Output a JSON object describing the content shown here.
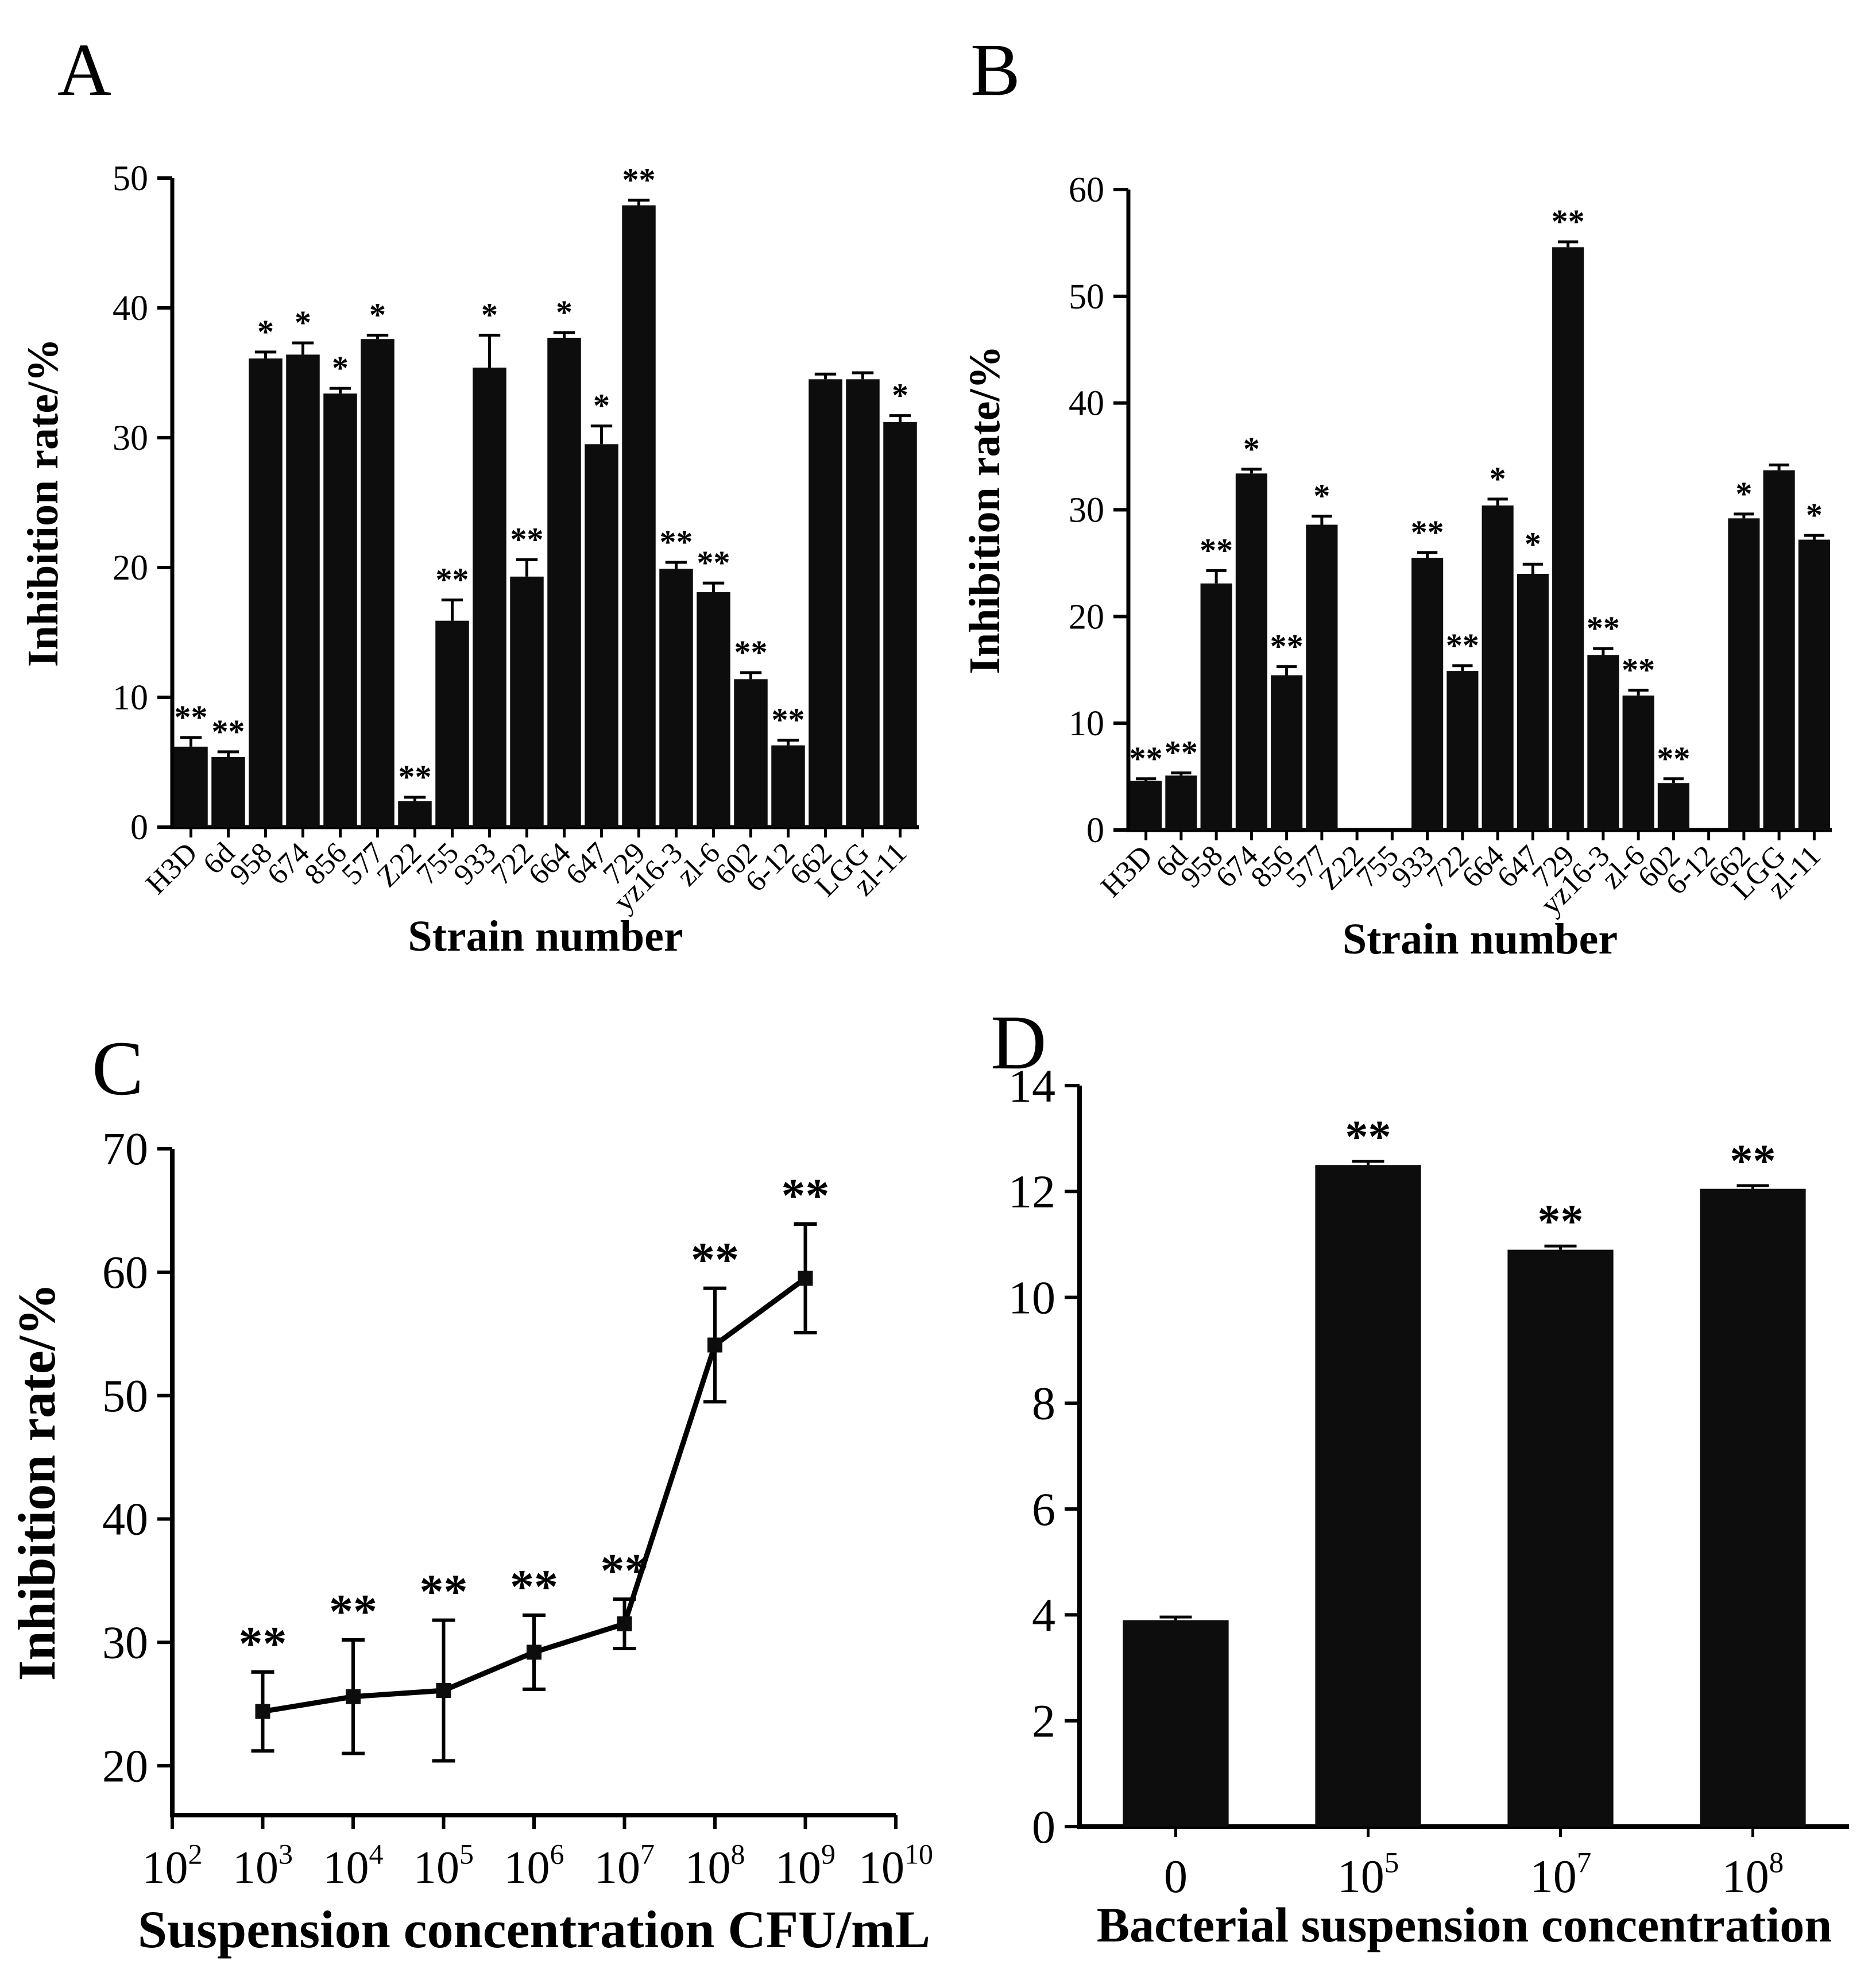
{
  "figure": {
    "background": "#ffffff",
    "bar_color": "#0d0d0d",
    "axis_color": "#000000"
  },
  "chart_data": [
    {
      "panel_label": "A",
      "type": "bar",
      "title": "",
      "xlabel": "Strain number",
      "ylabel": "Inhibition rate/%",
      "ylim": [
        0,
        50
      ],
      "yticks": [
        0,
        10,
        20,
        30,
        40,
        50
      ],
      "categories": [
        "H3D",
        "6d",
        "958",
        "674",
        "856",
        "577",
        "Z22",
        "755",
        "933",
        "722",
        "664",
        "647",
        "729",
        "yz16-3",
        "zl-6",
        "602",
        "6-12",
        "662",
        "LGG",
        "zl-11"
      ],
      "values": [
        6.2,
        5.4,
        36.1,
        36.4,
        33.4,
        37.6,
        2.0,
        15.9,
        35.4,
        19.3,
        37.7,
        29.5,
        47.9,
        19.9,
        18.1,
        11.4,
        6.3,
        34.5,
        34.5,
        31.2
      ],
      "errors": [
        0.7,
        0.4,
        0.5,
        0.9,
        0.4,
        0.3,
        0.3,
        1.6,
        2.5,
        1.3,
        0.4,
        1.4,
        0.4,
        0.5,
        0.7,
        0.5,
        0.4,
        0.4,
        0.5,
        0.5
      ],
      "significance": [
        "**",
        "**",
        "*",
        "*",
        "*",
        "*",
        "**",
        "**",
        "*",
        "**",
        "*",
        "*",
        "**",
        "**",
        "**",
        "**",
        "**",
        "",
        "",
        "*"
      ]
    },
    {
      "panel_label": "B",
      "type": "bar",
      "title": "",
      "xlabel": "Strain number",
      "ylabel": "Inhibition rate/%",
      "ylim": [
        0,
        60
      ],
      "yticks": [
        0,
        10,
        20,
        30,
        40,
        50,
        60
      ],
      "categories": [
        "H3D",
        "6d",
        "958",
        "674",
        "856",
        "577",
        "Z22",
        "755",
        "933",
        "722",
        "664",
        "647",
        "729",
        "yz16-3",
        "zl-6",
        "602",
        "6-12",
        "662",
        "LGG",
        "zl-11"
      ],
      "values": [
        4.6,
        5.1,
        23.1,
        33.4,
        14.5,
        28.6,
        0,
        0,
        25.5,
        14.9,
        30.4,
        24.0,
        54.6,
        16.4,
        12.6,
        4.4,
        0,
        29.2,
        33.7,
        27.2
      ],
      "errors": [
        0.2,
        0.25,
        1.2,
        0.4,
        0.8,
        0.8,
        0,
        0,
        0.5,
        0.5,
        0.6,
        0.9,
        0.5,
        0.6,
        0.5,
        0.4,
        0,
        0.4,
        0.5,
        0.4
      ],
      "significance": [
        "**",
        "**",
        "**",
        "*",
        "**",
        "*",
        "",
        "",
        "**",
        "**",
        "*",
        "*",
        "**",
        "**",
        "**",
        "**",
        "",
        "*",
        "",
        "*"
      ]
    },
    {
      "panel_label": "C",
      "type": "line",
      "title": "",
      "xlabel": "Suspension concentration CFU/mL",
      "ylabel": "Inhibition rate/%",
      "xlim": [
        2,
        10
      ],
      "xticks": [
        "10^2",
        "10^3",
        "10^4",
        "10^5",
        "10^6",
        "10^7",
        "10^8",
        "10^9",
        "10^10"
      ],
      "x": [
        3,
        4,
        5,
        6,
        7,
        8,
        9
      ],
      "ylim": [
        16,
        70
      ],
      "yticks": [
        20,
        30,
        40,
        50,
        60,
        70
      ],
      "values": [
        24.4,
        25.6,
        26.1,
        29.2,
        31.5,
        54.1,
        59.5
      ],
      "errors": [
        3.2,
        4.6,
        5.7,
        3.0,
        2.0,
        4.6,
        4.4
      ],
      "significance": [
        "**",
        "**",
        "**",
        "**",
        "**",
        "**",
        "**"
      ]
    },
    {
      "panel_label": "D",
      "type": "bar",
      "title": "",
      "xlabel": "Bacterial suspension concentration",
      "ylabel": "",
      "ylim": [
        0,
        14
      ],
      "yticks": [
        0,
        2,
        4,
        6,
        8,
        10,
        12,
        14
      ],
      "categories": [
        "0",
        "10^5",
        "10^7",
        "10^8"
      ],
      "values": [
        3.9,
        12.5,
        10.9,
        12.05
      ],
      "errors": [
        0.06,
        0.07,
        0.07,
        0.06
      ],
      "significance": [
        "",
        "**",
        "**",
        "**"
      ]
    }
  ]
}
